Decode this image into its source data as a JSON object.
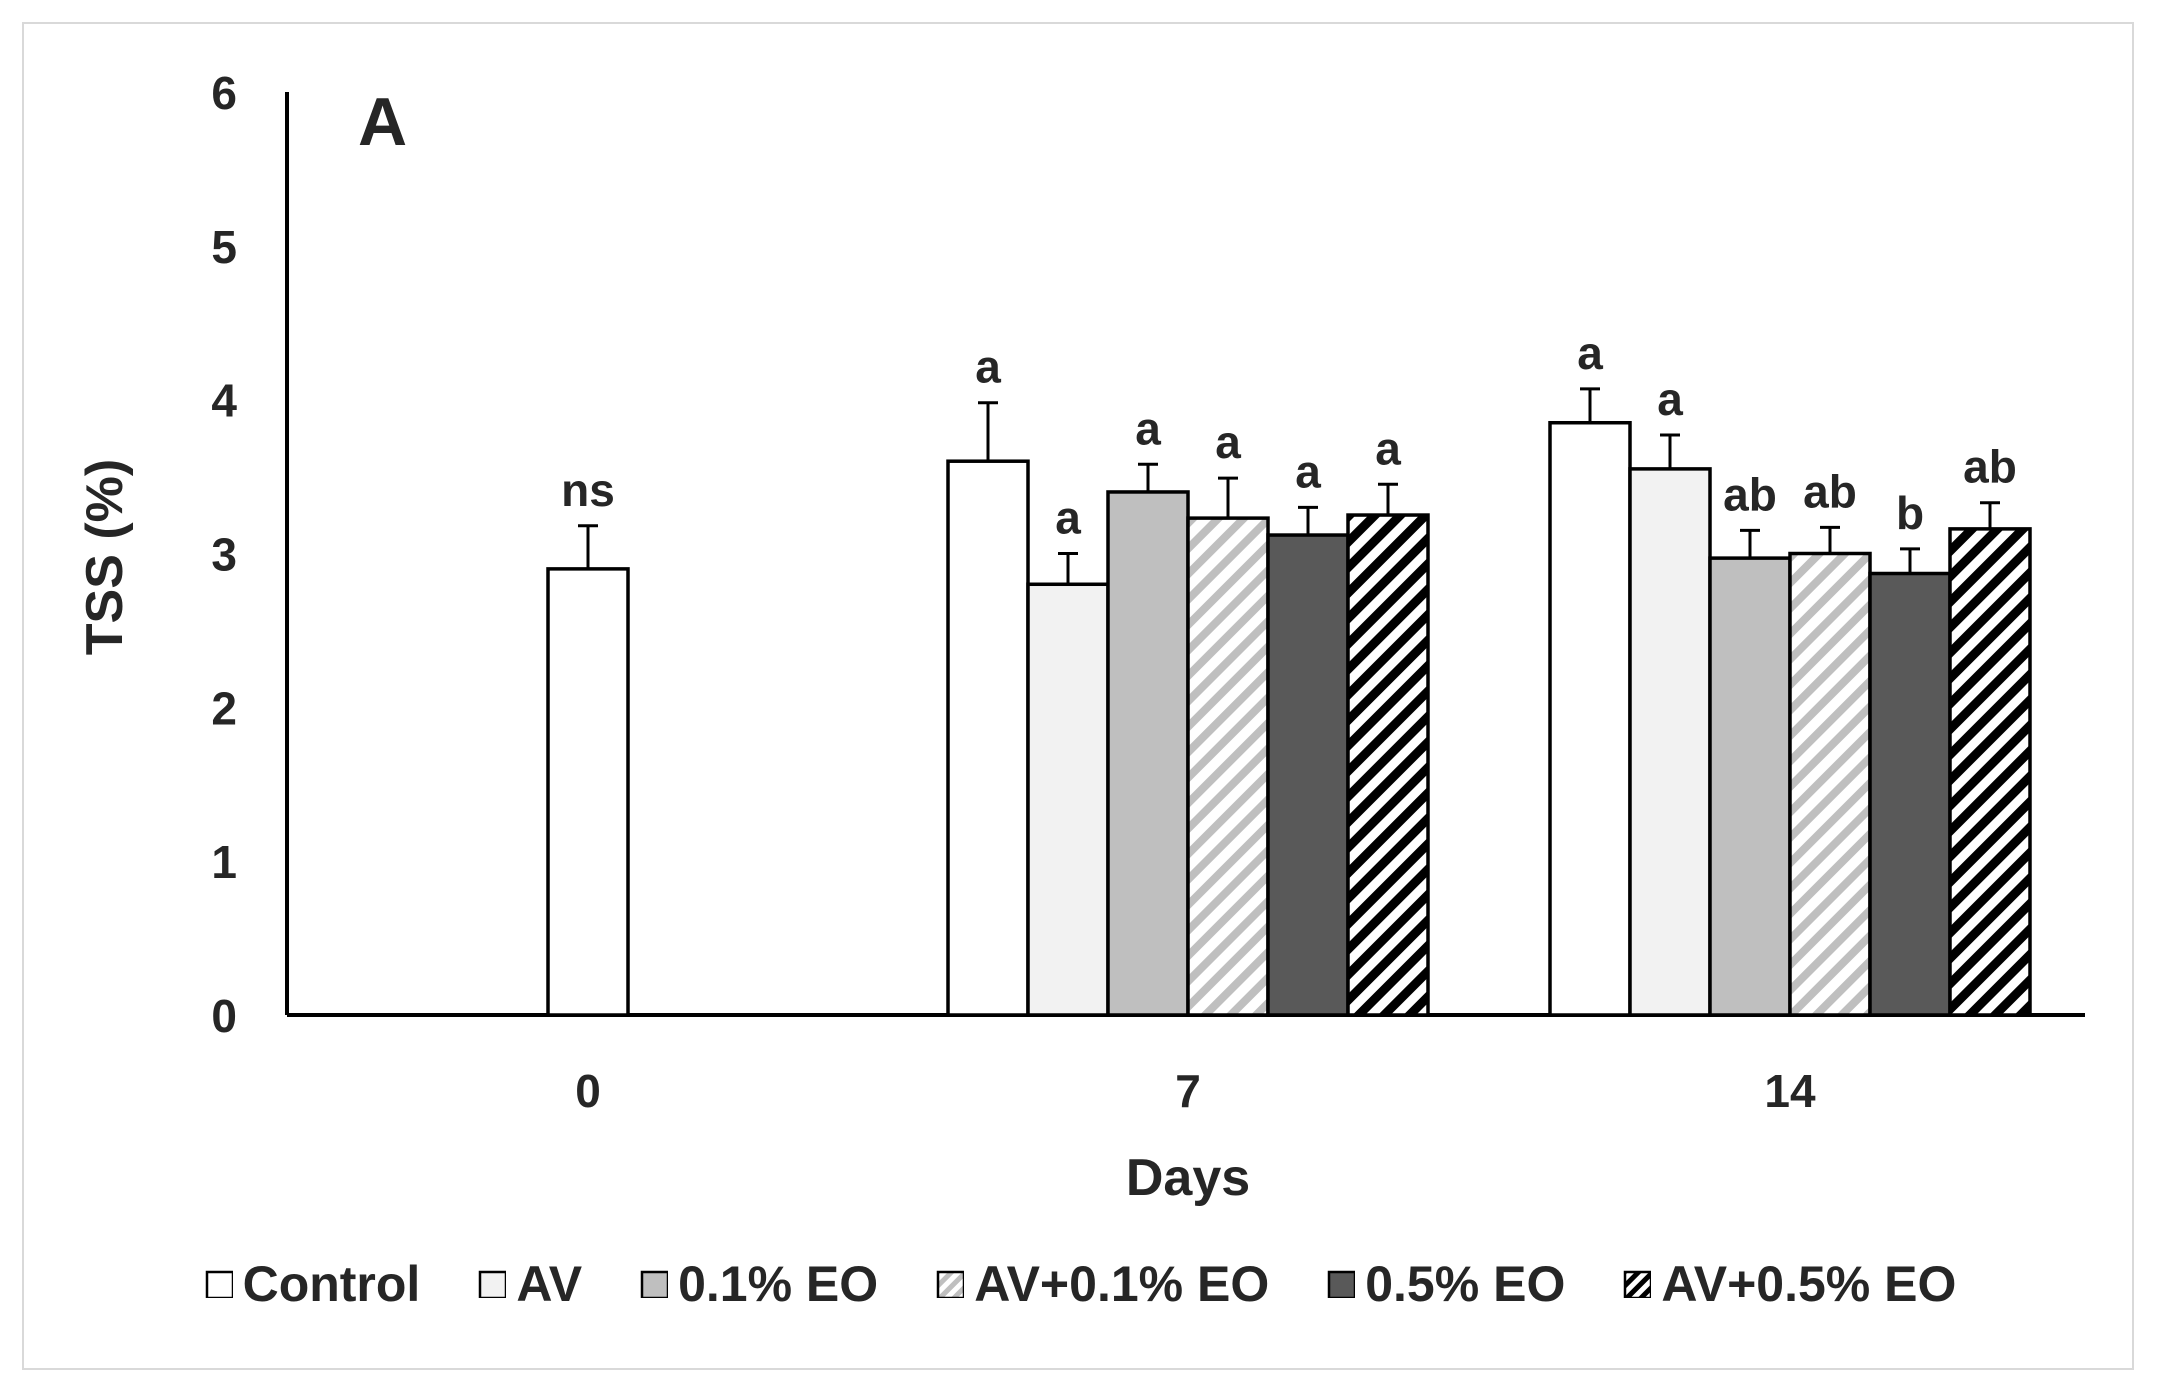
{
  "chart_data": {
    "type": "bar",
    "panel_label": "A",
    "title": "",
    "xlabel": "Days",
    "ylabel": "TSS (%)",
    "ylim": [
      0,
      6
    ],
    "yticks": [
      "0",
      "1",
      "2",
      "3",
      "4",
      "5",
      "6"
    ],
    "categories": [
      "0",
      "7",
      "14"
    ],
    "grid": false,
    "legend_position": "bottom",
    "series": [
      {
        "name": "Control",
        "values": [
          2.9,
          3.6,
          3.85
        ],
        "errors": [
          0.28,
          0.38,
          0.22
        ],
        "labels": [
          "ns",
          "a",
          "a"
        ],
        "fill": "#ffffff",
        "pattern": "none"
      },
      {
        "name": "AV",
        "values": [
          null,
          2.8,
          3.55
        ],
        "errors": [
          null,
          0.2,
          0.22
        ],
        "labels": [
          "",
          "a",
          "a"
        ],
        "fill": "#f2f2f2",
        "pattern": "none"
      },
      {
        "name": "0.1% EO",
        "values": [
          null,
          3.4,
          2.97
        ],
        "errors": [
          null,
          0.18,
          0.18
        ],
        "labels": [
          "",
          "a",
          "ab"
        ],
        "fill": "#bfbfbf",
        "pattern": "none"
      },
      {
        "name": "AV+0.1% EO",
        "values": [
          null,
          3.23,
          3.0
        ],
        "errors": [
          null,
          0.26,
          0.17
        ],
        "labels": [
          "",
          "a",
          "ab"
        ],
        "fill": "#bfbfbf",
        "pattern": "light-diagonal"
      },
      {
        "name": "0.5% EO",
        "values": [
          null,
          3.12,
          2.87
        ],
        "errors": [
          null,
          0.18,
          0.16
        ],
        "labels": [
          "",
          "a",
          "b"
        ],
        "fill": "#595959",
        "pattern": "none"
      },
      {
        "name": "AV+0.5% EO",
        "values": [
          null,
          3.25,
          3.16
        ],
        "errors": [
          null,
          0.2,
          0.17
        ],
        "labels": [
          "",
          "a",
          "ab"
        ],
        "fill": "#000000",
        "pattern": "dark-diagonal"
      }
    ]
  }
}
